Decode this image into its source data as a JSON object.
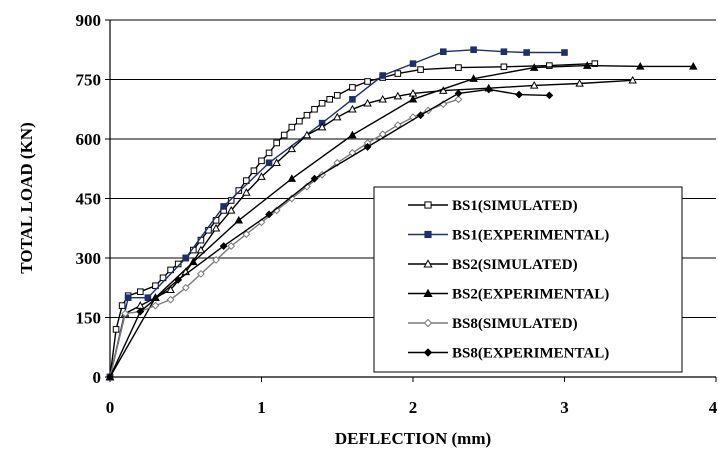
{
  "chart_data": {
    "type": "line",
    "title": "",
    "xlabel": "DEFLECTION (mm)",
    "ylabel": "TOTAL LOAD (KN)",
    "xlim": [
      0,
      4
    ],
    "ylim": [
      0,
      900
    ],
    "x_ticks": [
      0,
      1,
      2,
      3,
      4
    ],
    "x_tick_labels": [
      "0",
      "1",
      "2",
      "3",
      "4"
    ],
    "y_ticks": [
      0,
      150,
      300,
      450,
      600,
      750,
      900
    ],
    "y_tick_labels": [
      "0",
      "150",
      "300",
      "450",
      "600",
      "750",
      "900"
    ],
    "grid": "horizontal",
    "legend_position": "lower-right",
    "series": [
      {
        "name": "BS1(SIMULATED)",
        "color": "#000000",
        "marker": "open-square",
        "points": [
          [
            0,
            0
          ],
          [
            0.04,
            120
          ],
          [
            0.08,
            180
          ],
          [
            0.12,
            205
          ],
          [
            0.2,
            215
          ],
          [
            0.3,
            230
          ],
          [
            0.35,
            250
          ],
          [
            0.4,
            270
          ],
          [
            0.45,
            285
          ],
          [
            0.5,
            300
          ],
          [
            0.55,
            320
          ],
          [
            0.6,
            345
          ],
          [
            0.65,
            370
          ],
          [
            0.7,
            395
          ],
          [
            0.75,
            420
          ],
          [
            0.8,
            445
          ],
          [
            0.85,
            470
          ],
          [
            0.9,
            495
          ],
          [
            0.95,
            520
          ],
          [
            1.0,
            545
          ],
          [
            1.05,
            565
          ],
          [
            1.1,
            590
          ],
          [
            1.15,
            610
          ],
          [
            1.2,
            630
          ],
          [
            1.25,
            645
          ],
          [
            1.3,
            660
          ],
          [
            1.35,
            675
          ],
          [
            1.4,
            690
          ],
          [
            1.45,
            700
          ],
          [
            1.5,
            710
          ],
          [
            1.6,
            730
          ],
          [
            1.7,
            745
          ],
          [
            1.8,
            755
          ],
          [
            1.9,
            765
          ],
          [
            2.05,
            775
          ],
          [
            2.3,
            780
          ],
          [
            2.6,
            782
          ],
          [
            2.9,
            785
          ],
          [
            3.2,
            790
          ]
        ]
      },
      {
        "name": "BS1(EXPERIMENTAL)",
        "color": "#1f2f6a",
        "marker": "filled-square",
        "points": [
          [
            0,
            0
          ],
          [
            0.12,
            200
          ],
          [
            0.25,
            200
          ],
          [
            0.5,
            300
          ],
          [
            0.75,
            430
          ],
          [
            1.05,
            540
          ],
          [
            1.4,
            640
          ],
          [
            1.6,
            700
          ],
          [
            1.8,
            760
          ],
          [
            2.0,
            790
          ],
          [
            2.2,
            820
          ],
          [
            2.4,
            825
          ],
          [
            2.6,
            820
          ],
          [
            2.75,
            818
          ],
          [
            3.0,
            818
          ]
        ]
      },
      {
        "name": "BS2(SIMULATED)",
        "color": "#000000",
        "marker": "open-triangle",
        "points": [
          [
            0,
            0
          ],
          [
            0.1,
            160
          ],
          [
            0.2,
            180
          ],
          [
            0.3,
            200
          ],
          [
            0.4,
            220
          ],
          [
            0.5,
            265
          ],
          [
            0.6,
            320
          ],
          [
            0.7,
            375
          ],
          [
            0.8,
            420
          ],
          [
            0.9,
            465
          ],
          [
            1.0,
            505
          ],
          [
            1.1,
            540
          ],
          [
            1.2,
            575
          ],
          [
            1.3,
            610
          ],
          [
            1.4,
            630
          ],
          [
            1.5,
            655
          ],
          [
            1.6,
            675
          ],
          [
            1.7,
            690
          ],
          [
            1.8,
            700
          ],
          [
            1.9,
            708
          ],
          [
            2.0,
            715
          ],
          [
            2.2,
            722
          ],
          [
            2.5,
            728
          ],
          [
            2.8,
            735
          ],
          [
            3.1,
            740
          ],
          [
            3.45,
            748
          ]
        ]
      },
      {
        "name": "BS2(EXPERIMENTAL)",
        "color": "#000000",
        "marker": "filled-triangle",
        "points": [
          [
            0,
            0
          ],
          [
            0.3,
            200
          ],
          [
            0.55,
            290
          ],
          [
            0.85,
            395
          ],
          [
            1.2,
            500
          ],
          [
            1.6,
            610
          ],
          [
            2.0,
            700
          ],
          [
            2.4,
            752
          ],
          [
            2.8,
            780
          ],
          [
            3.15,
            785
          ],
          [
            3.5,
            783
          ],
          [
            3.85,
            783
          ]
        ]
      },
      {
        "name": "BS8(SIMULATED)",
        "color": "#7a7a7a",
        "marker": "open-diamond",
        "points": [
          [
            0,
            0
          ],
          [
            0.1,
            160
          ],
          [
            0.2,
            165
          ],
          [
            0.3,
            180
          ],
          [
            0.4,
            195
          ],
          [
            0.5,
            225
          ],
          [
            0.6,
            260
          ],
          [
            0.7,
            295
          ],
          [
            0.8,
            330
          ],
          [
            0.9,
            360
          ],
          [
            1.0,
            390
          ],
          [
            1.1,
            420
          ],
          [
            1.2,
            450
          ],
          [
            1.3,
            480
          ],
          [
            1.4,
            510
          ],
          [
            1.5,
            540
          ],
          [
            1.6,
            565
          ],
          [
            1.7,
            590
          ],
          [
            1.8,
            612
          ],
          [
            1.9,
            635
          ],
          [
            2.0,
            655
          ],
          [
            2.1,
            672
          ],
          [
            2.2,
            688
          ],
          [
            2.3,
            700
          ]
        ]
      },
      {
        "name": "BS8(EXPERIMENTAL)",
        "color": "#000000",
        "marker": "filled-diamond",
        "points": [
          [
            0,
            0
          ],
          [
            0.2,
            165
          ],
          [
            0.45,
            245
          ],
          [
            0.75,
            330
          ],
          [
            1.05,
            410
          ],
          [
            1.35,
            500
          ],
          [
            1.7,
            580
          ],
          [
            2.05,
            660
          ],
          [
            2.3,
            715
          ],
          [
            2.5,
            725
          ],
          [
            2.7,
            712
          ],
          [
            2.9,
            710
          ]
        ]
      }
    ]
  }
}
